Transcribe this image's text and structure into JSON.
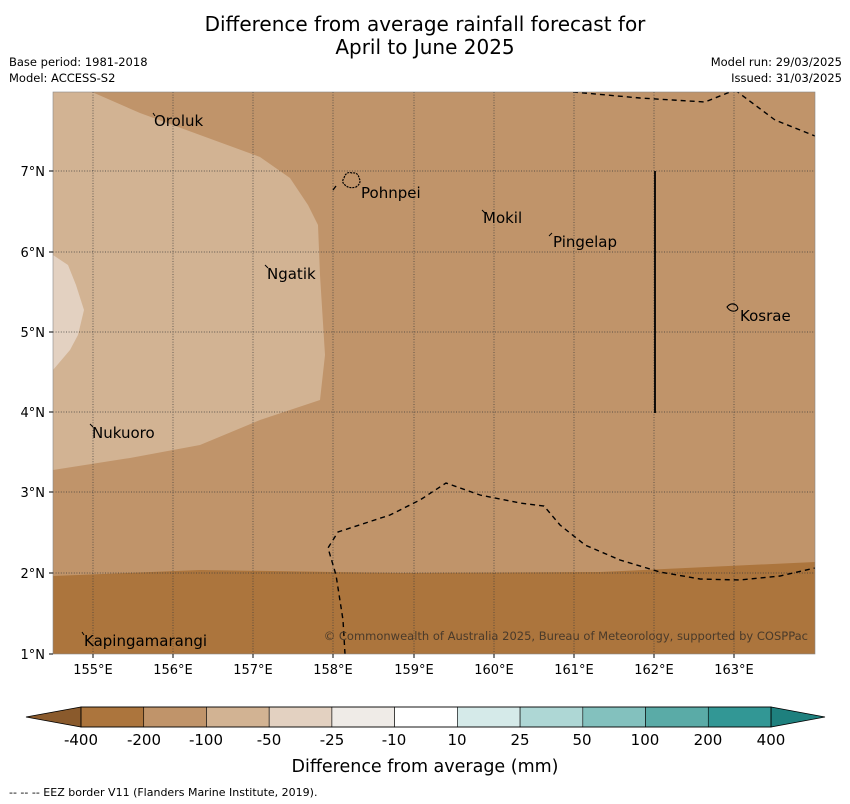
{
  "title_line1": "Difference from average rainfall forecast for",
  "title_line2": "April to June 2025",
  "meta_left": {
    "base_period": "Base period: 1981-2018",
    "model": "Model: ACCESS-S2"
  },
  "meta_right": {
    "model_run": "Model run: 29/03/2025",
    "issued": "Issued: 31/03/2025"
  },
  "copyright": "© Commonwealth of Australia 2025, Bureau of Meteorology, supported by COSPPac",
  "map": {
    "lon_ticks": [
      "155°E",
      "156°E",
      "157°E",
      "158°E",
      "159°E",
      "160°E",
      "161°E",
      "162°E",
      "163°E"
    ],
    "lat_ticks": [
      "1°N",
      "2°N",
      "3°N",
      "4°N",
      "5°N",
      "6°N",
      "7°N"
    ],
    "places": [
      {
        "name": "Oroluk"
      },
      {
        "name": "Pohnpei"
      },
      {
        "name": "Mokil"
      },
      {
        "name": "Pingelap"
      },
      {
        "name": "Ngatik"
      },
      {
        "name": "Kosrae"
      },
      {
        "name": "Nukuoro"
      },
      {
        "name": "Kapingamarangi"
      }
    ]
  },
  "colorbar": {
    "labels": [
      "-400",
      "-200",
      "-100",
      "-50",
      "-25",
      "-10",
      "10",
      "25",
      "50",
      "100",
      "200",
      "400"
    ],
    "colors": [
      "#ac753d",
      "#c0946a",
      "#d2b393",
      "#e3d1c1",
      "#efebe7",
      "#ffffff",
      "#d5eae9",
      "#aed7d5",
      "#83c1be",
      "#5aaba7",
      "#329795"
    ],
    "label": "Difference from average (mm)"
  },
  "footer": "--  --  -- EEZ border V11 (Flanders Marine Institute, 2019)."
}
